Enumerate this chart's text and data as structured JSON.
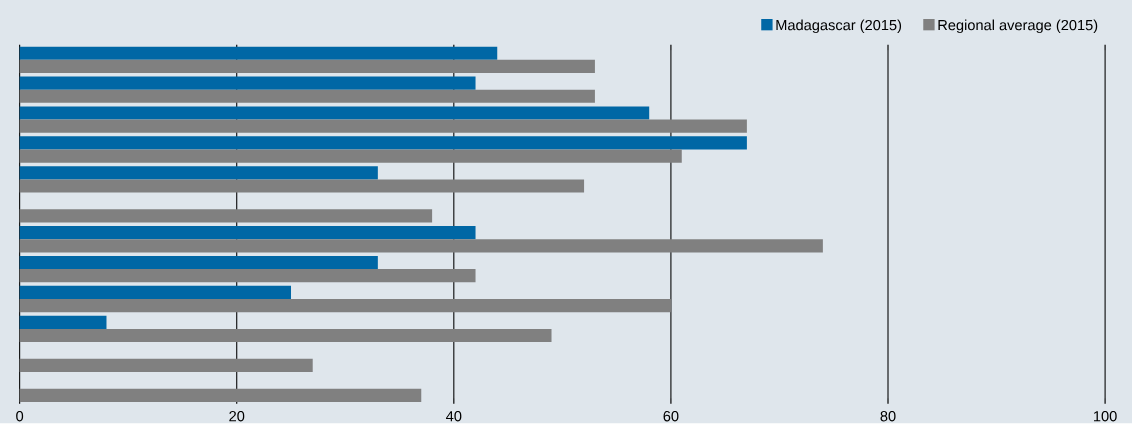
{
  "chart_data": {
    "type": "bar",
    "orientation": "horizontal",
    "categories": [
      null,
      null,
      null,
      null,
      null,
      null,
      null,
      null,
      null,
      null,
      null,
      null
    ],
    "series": [
      {
        "name": "Madagascar (2015)",
        "color": "#0067a5",
        "values": [
          44,
          42,
          58,
          67,
          33,
          null,
          42,
          33,
          25,
          8,
          null,
          null
        ]
      },
      {
        "name": "Regional average (2015)",
        "color": "#808080",
        "values": [
          53,
          53,
          67,
          61,
          52,
          38,
          74,
          42,
          60,
          49,
          27,
          37
        ]
      }
    ],
    "xlim": [
      0,
      100
    ],
    "xticks": [
      0,
      20,
      40,
      60,
      80,
      100
    ],
    "grid": "x",
    "legend": "top right"
  }
}
